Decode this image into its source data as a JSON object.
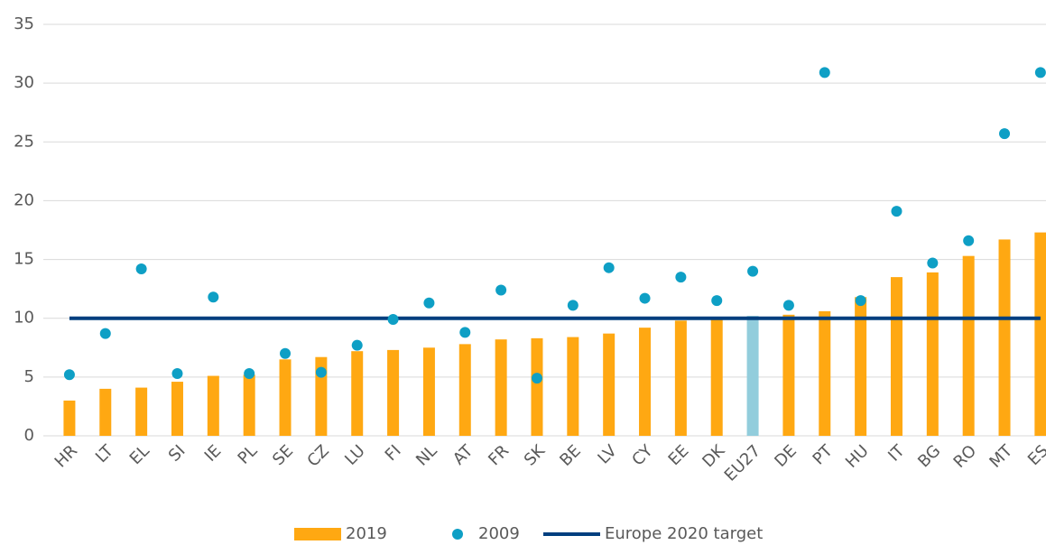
{
  "chart_data": {
    "type": "bar_dot",
    "categories": [
      "HR",
      "LT",
      "EL",
      "SI",
      "IE",
      "PL",
      "SE",
      "CZ",
      "LU",
      "FI",
      "NL",
      "AT",
      "FR",
      "SK",
      "BE",
      "LV",
      "CY",
      "EE",
      "DK",
      "EU27",
      "DE",
      "PT",
      "HU",
      "IT",
      "BG",
      "RO",
      "MT",
      "ES"
    ],
    "series": [
      {
        "name": "2019",
        "type": "bar",
        "color": "#ffa812",
        "colors": [
          "#ffa812",
          "#ffa812",
          "#ffa812",
          "#ffa812",
          "#ffa812",
          "#ffa812",
          "#ffa812",
          "#ffa812",
          "#ffa812",
          "#ffa812",
          "#ffa812",
          "#ffa812",
          "#ffa812",
          "#ffa812",
          "#ffa812",
          "#ffa812",
          "#ffa812",
          "#ffa812",
          "#ffa812",
          "#92cddc",
          "#ffa812",
          "#ffa812",
          "#ffa812",
          "#ffa812",
          "#ffa812",
          "#ffa812",
          "#ffa812",
          "#ffa812"
        ],
        "values": [
          3.0,
          4.0,
          4.1,
          4.6,
          5.1,
          5.2,
          6.5,
          6.7,
          7.2,
          7.3,
          7.5,
          7.8,
          8.2,
          8.3,
          8.4,
          8.7,
          9.2,
          9.8,
          9.9,
          10.2,
          10.3,
          10.6,
          11.8,
          13.5,
          13.9,
          15.3,
          16.7,
          17.3
        ]
      },
      {
        "name": "2009",
        "type": "dot",
        "color": "#0e9fc5",
        "values": [
          5.2,
          8.7,
          14.2,
          5.3,
          11.8,
          5.3,
          7.0,
          5.4,
          7.7,
          9.9,
          11.3,
          8.8,
          12.4,
          4.9,
          11.1,
          14.3,
          11.7,
          13.5,
          11.5,
          14.0,
          11.1,
          30.9,
          11.5,
          19.1,
          14.7,
          16.6,
          25.7,
          30.9
        ]
      },
      {
        "name": "Europe 2020 target",
        "type": "hline",
        "color": "#003f7f",
        "value": 10
      }
    ],
    "ylim": [
      0,
      35
    ],
    "yticks": [
      0,
      5,
      10,
      15,
      20,
      25,
      30,
      35
    ],
    "grid": true
  }
}
